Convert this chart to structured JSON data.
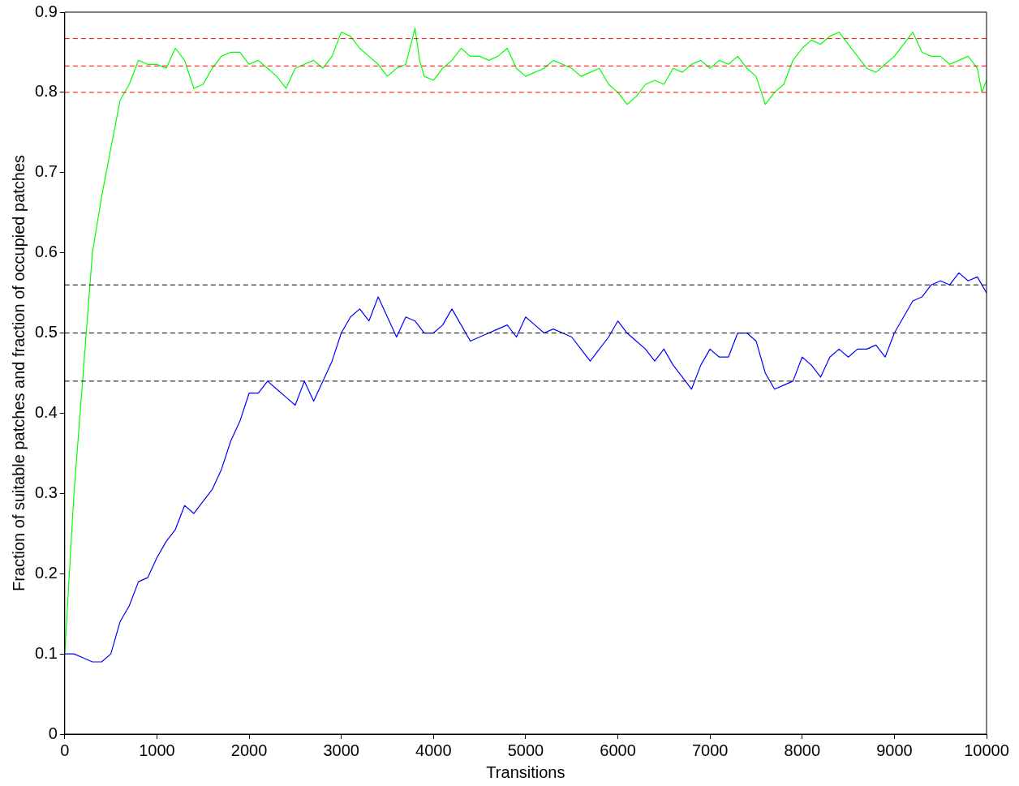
{
  "chart_data": {
    "type": "line",
    "xlabel": "Transitions",
    "ylabel": "Fraction of suitable patches and fraction of occupied patches",
    "xlim": [
      0,
      10000
    ],
    "ylim": [
      0,
      0.9
    ],
    "xticks": [
      0,
      1000,
      2000,
      3000,
      4000,
      5000,
      6000,
      7000,
      8000,
      9000,
      10000
    ],
    "yticks": [
      0,
      0.1,
      0.2,
      0.3,
      0.4,
      0.5,
      0.6,
      0.7,
      0.8,
      0.9
    ],
    "marker": "none",
    "line_style": "solid",
    "legend": false,
    "series": [
      {
        "color": "#00ff00",
        "x": [
          0,
          100,
          200,
          300,
          400,
          500,
          600,
          700,
          800,
          900,
          1000,
          1100,
          1200,
          1300,
          1400,
          1500,
          1600,
          1700,
          1800,
          1900,
          2000,
          2100,
          2200,
          2300,
          2400,
          2500,
          2600,
          2700,
          2800,
          2900,
          3000,
          3100,
          3200,
          3300,
          3400,
          3500,
          3600,
          3700,
          3800,
          3850,
          3900,
          4000,
          4100,
          4200,
          4300,
          4400,
          4500,
          4600,
          4700,
          4800,
          4900,
          5000,
          5100,
          5200,
          5300,
          5400,
          5500,
          5600,
          5700,
          5800,
          5900,
          6000,
          6100,
          6200,
          6300,
          6400,
          6500,
          6600,
          6700,
          6800,
          6900,
          7000,
          7100,
          7200,
          7300,
          7400,
          7500,
          7600,
          7700,
          7800,
          7900,
          8000,
          8100,
          8200,
          8300,
          8400,
          8500,
          8600,
          8700,
          8800,
          8900,
          9000,
          9100,
          9200,
          9300,
          9400,
          9500,
          9600,
          9700,
          9800,
          9900,
          9950,
          10000
        ],
        "values": [
          0.1,
          0.3,
          0.45,
          0.6,
          0.67,
          0.73,
          0.79,
          0.81,
          0.84,
          0.835,
          0.835,
          0.83,
          0.855,
          0.84,
          0.805,
          0.81,
          0.83,
          0.845,
          0.85,
          0.85,
          0.835,
          0.84,
          0.83,
          0.82,
          0.805,
          0.83,
          0.835,
          0.84,
          0.83,
          0.845,
          0.875,
          0.87,
          0.855,
          0.845,
          0.835,
          0.82,
          0.83,
          0.835,
          0.88,
          0.84,
          0.82,
          0.815,
          0.83,
          0.84,
          0.855,
          0.845,
          0.845,
          0.84,
          0.845,
          0.855,
          0.83,
          0.82,
          0.825,
          0.83,
          0.84,
          0.835,
          0.83,
          0.82,
          0.825,
          0.83,
          0.81,
          0.8,
          0.785,
          0.795,
          0.81,
          0.815,
          0.81,
          0.83,
          0.825,
          0.835,
          0.84,
          0.83,
          0.84,
          0.835,
          0.845,
          0.83,
          0.82,
          0.785,
          0.8,
          0.81,
          0.84,
          0.855,
          0.865,
          0.86,
          0.87,
          0.875,
          0.86,
          0.845,
          0.83,
          0.825,
          0.835,
          0.845,
          0.86,
          0.875,
          0.85,
          0.845,
          0.845,
          0.835,
          0.84,
          0.845,
          0.83,
          0.8,
          0.815
        ]
      },
      {
        "color": "#0000ff",
        "x": [
          0,
          100,
          200,
          300,
          400,
          500,
          600,
          700,
          800,
          900,
          1000,
          1100,
          1200,
          1300,
          1400,
          1500,
          1600,
          1700,
          1800,
          1900,
          2000,
          2100,
          2200,
          2300,
          2400,
          2500,
          2600,
          2700,
          2800,
          2900,
          3000,
          3100,
          3200,
          3300,
          3400,
          3500,
          3600,
          3700,
          3800,
          3900,
          4000,
          4100,
          4200,
          4300,
          4400,
          4500,
          4600,
          4700,
          4800,
          4900,
          5000,
          5100,
          5200,
          5300,
          5400,
          5500,
          5600,
          5700,
          5800,
          5900,
          6000,
          6100,
          6200,
          6300,
          6400,
          6500,
          6600,
          6700,
          6800,
          6900,
          7000,
          7100,
          7200,
          7300,
          7400,
          7500,
          7600,
          7700,
          7800,
          7900,
          8000,
          8100,
          8200,
          8300,
          8400,
          8500,
          8600,
          8700,
          8800,
          8900,
          9000,
          9100,
          9200,
          9300,
          9400,
          9500,
          9600,
          9700,
          9800,
          9900,
          10000
        ],
        "values": [
          0.1,
          0.1,
          0.095,
          0.09,
          0.09,
          0.1,
          0.14,
          0.16,
          0.19,
          0.195,
          0.22,
          0.24,
          0.255,
          0.285,
          0.275,
          0.29,
          0.305,
          0.33,
          0.365,
          0.39,
          0.425,
          0.425,
          0.44,
          0.43,
          0.42,
          0.41,
          0.44,
          0.415,
          0.44,
          0.465,
          0.5,
          0.52,
          0.53,
          0.515,
          0.545,
          0.52,
          0.495,
          0.52,
          0.515,
          0.5,
          0.5,
          0.51,
          0.53,
          0.51,
          0.49,
          0.495,
          0.5,
          0.505,
          0.51,
          0.495,
          0.52,
          0.51,
          0.5,
          0.505,
          0.5,
          0.495,
          0.48,
          0.465,
          0.48,
          0.495,
          0.515,
          0.5,
          0.49,
          0.48,
          0.465,
          0.48,
          0.46,
          0.445,
          0.43,
          0.46,
          0.48,
          0.47,
          0.47,
          0.5,
          0.5,
          0.49,
          0.45,
          0.43,
          0.435,
          0.44,
          0.47,
          0.46,
          0.445,
          0.47,
          0.48,
          0.47,
          0.48,
          0.48,
          0.485,
          0.47,
          0.5,
          0.52,
          0.54,
          0.545,
          0.56,
          0.565,
          0.56,
          0.575,
          0.565,
          0.57,
          0.55
        ]
      }
    ],
    "ref_lines": [
      {
        "axis": "y",
        "value": 0.867,
        "color": "#ff0000",
        "line_style": "dashed"
      },
      {
        "axis": "y",
        "value": 0.833,
        "color": "#ff0000",
        "line_style": "dashed"
      },
      {
        "axis": "y",
        "value": 0.8,
        "color": "#ff0000",
        "line_style": "dashed"
      },
      {
        "axis": "y",
        "value": 0.56,
        "color": "#000000",
        "line_style": "dashed"
      },
      {
        "axis": "y",
        "value": 0.5,
        "color": "#000000",
        "line_style": "dashed"
      },
      {
        "axis": "y",
        "value": 0.44,
        "color": "#000000",
        "line_style": "dashed"
      }
    ]
  }
}
